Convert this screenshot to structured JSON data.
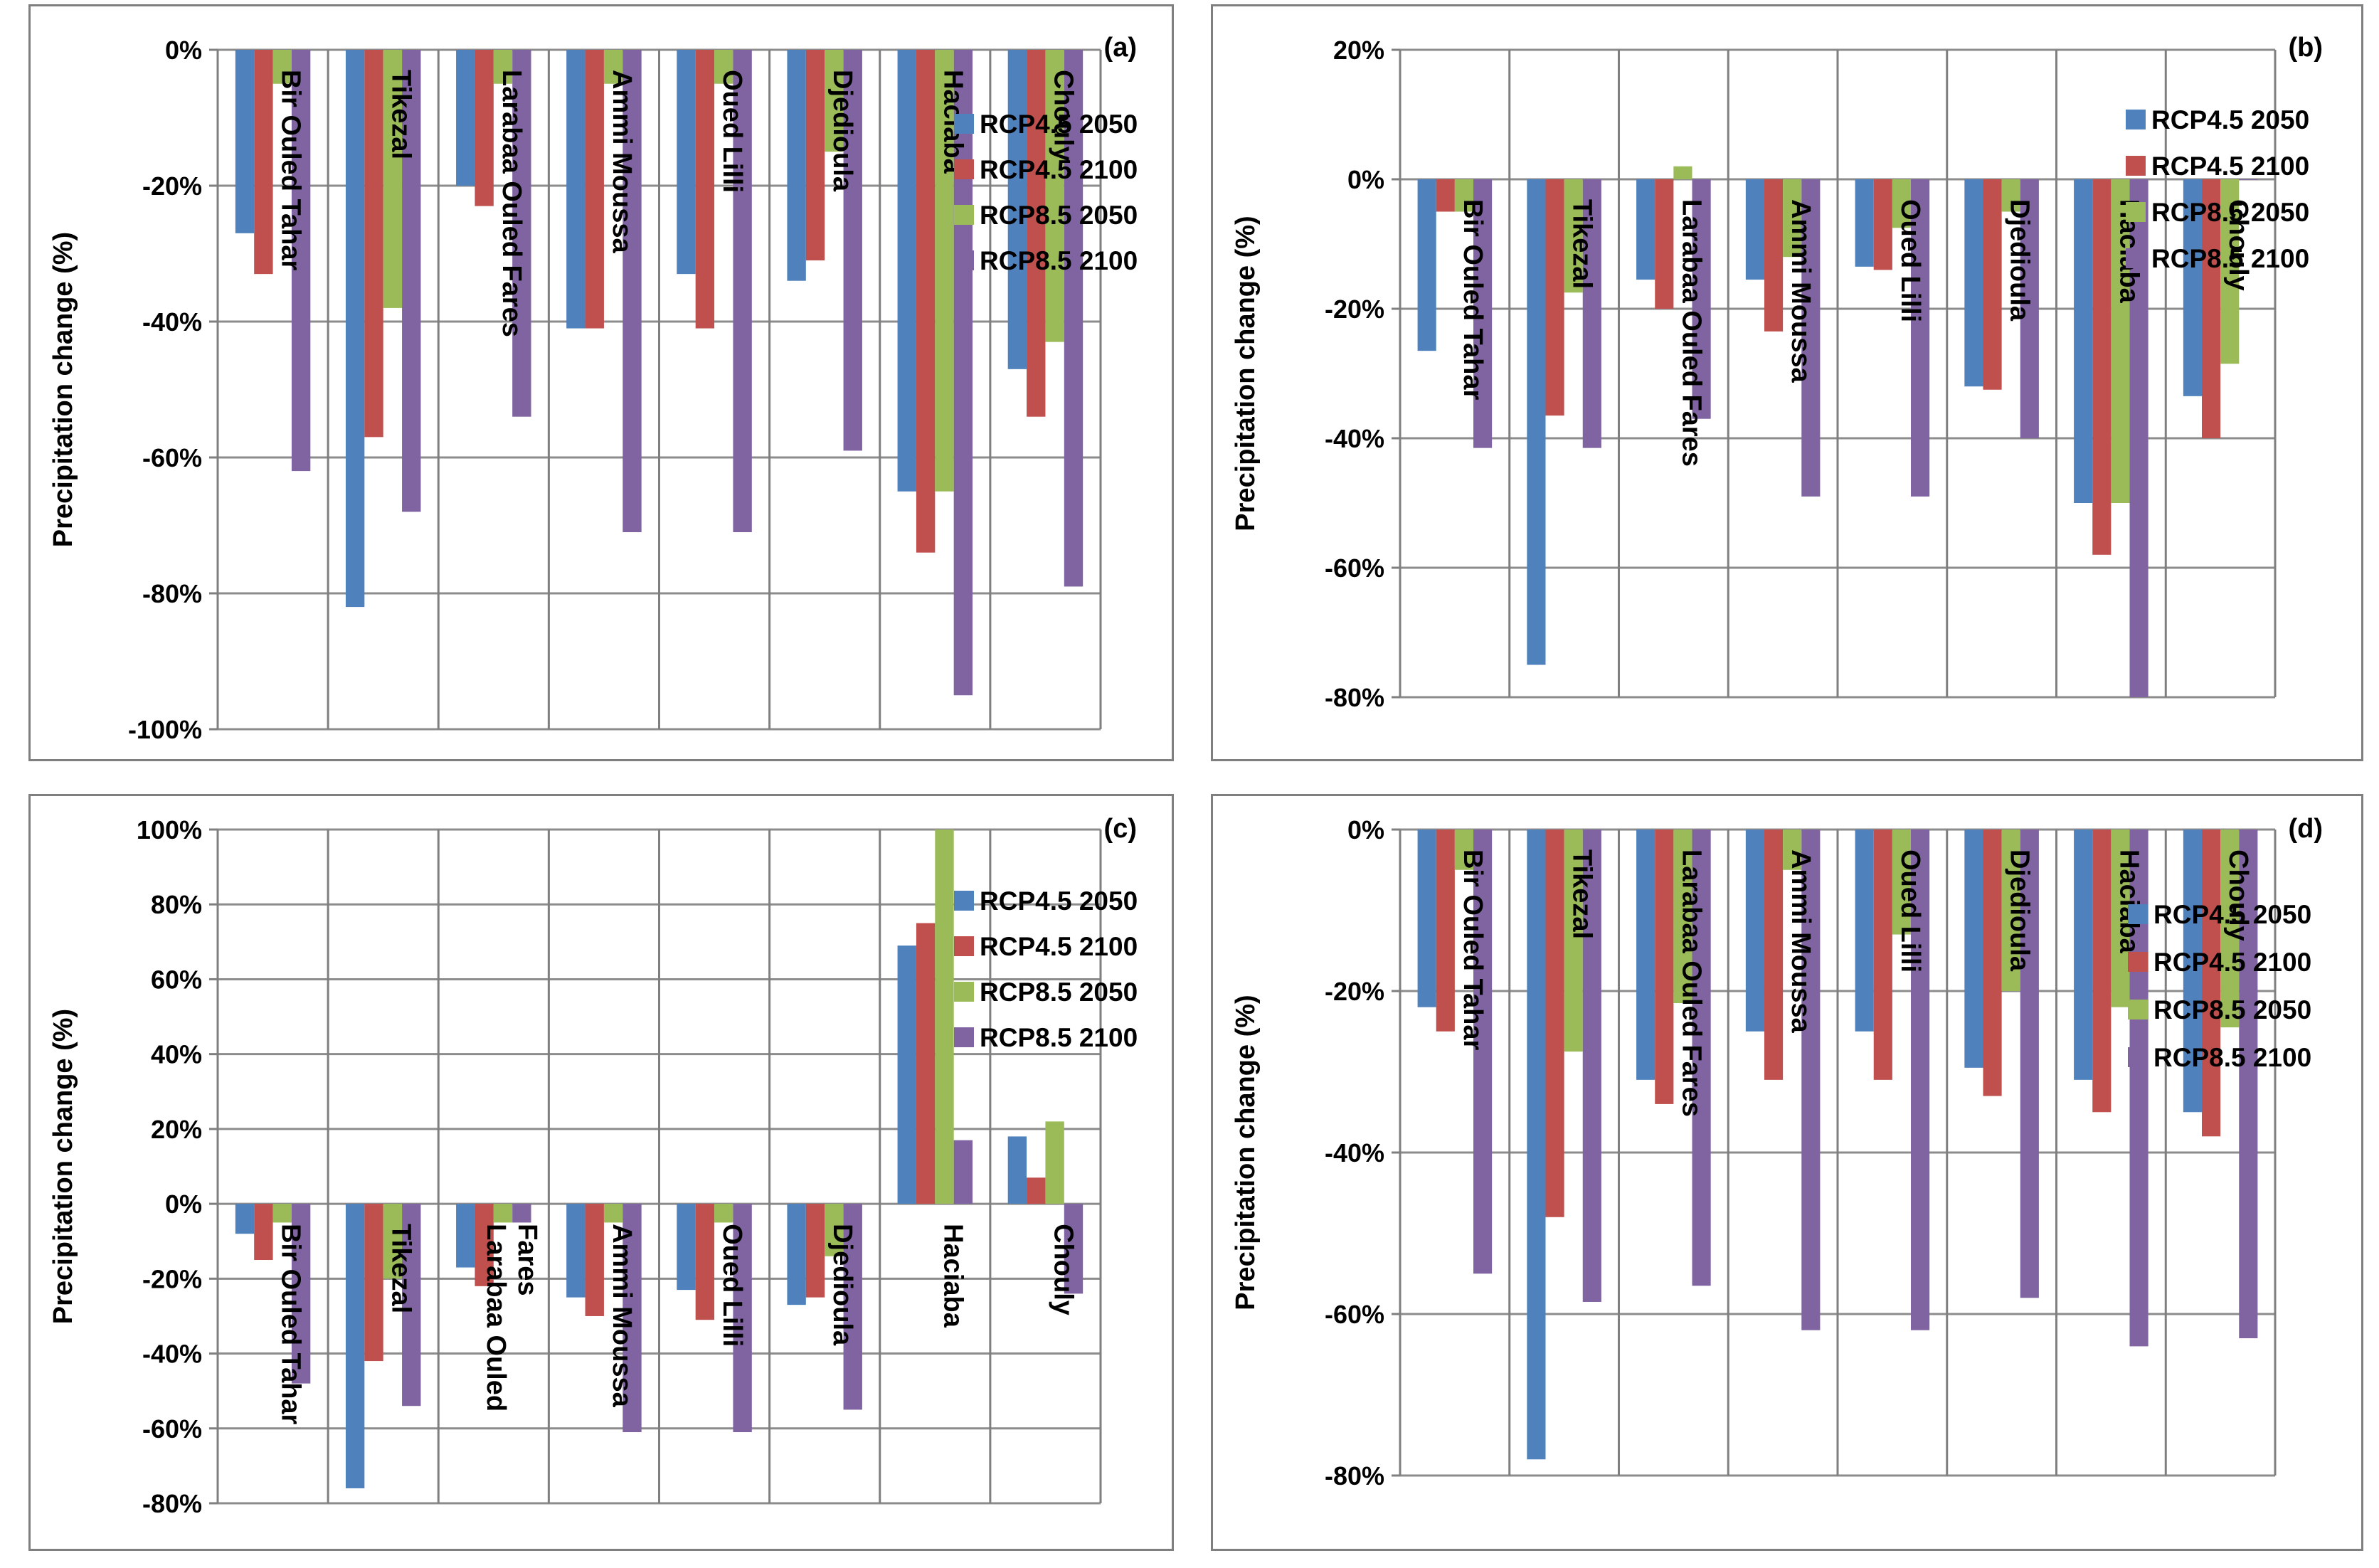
{
  "colors": {
    "RCP4.5 2050": "#4f81bd",
    "RCP4.5 2100": "#c0504d",
    "RCP8.5 2050": "#9bbb59",
    "RCP8.5 2100": "#8064a2",
    "grid": "#8c8c8c",
    "axis": "#7f7f7f",
    "text": "#000000"
  },
  "chart_data": [
    {
      "type": "bar",
      "panel_label": "(a)",
      "ylabel": "Precipitation change (%)",
      "ylim": [
        -100,
        0
      ],
      "yticks": [
        0,
        -20,
        -40,
        -60,
        -80,
        -100
      ],
      "ytick_labels": [
        "0%",
        "-20%",
        "-40%",
        "-60%",
        "-80%",
        "-100%"
      ],
      "categories": [
        "Bir Ouled Tahar",
        "Tikezal",
        "Larabaa Ouled Fares",
        "Ammi Moussa",
        "Oued Lilli",
        "Djedioula",
        "Haciaba",
        "Chouly"
      ],
      "category_labels": [
        [
          "Bir Ouled Tahar"
        ],
        [
          "Tikezal"
        ],
        [
          "Larabaa Ouled Fares"
        ],
        [
          "Ammi Moussa"
        ],
        [
          "Oued Lilli"
        ],
        [
          "Djedioula"
        ],
        [
          "Haciaba"
        ],
        [
          "Chouly"
        ]
      ],
      "series": [
        {
          "name": "RCP4.5 2050",
          "values": [
            -27,
            -82,
            -20,
            -41,
            -33,
            -34,
            -65,
            -47
          ]
        },
        {
          "name": "RCP4.5 2100",
          "values": [
            -33,
            -57,
            -23,
            -41,
            -41,
            -31,
            -74,
            -54
          ]
        },
        {
          "name": "RCP8.5 2050",
          "values": [
            -5,
            -38,
            -5,
            -5,
            -5,
            -15,
            -65,
            -43
          ]
        },
        {
          "name": "RCP8.5 2100",
          "values": [
            -62,
            -68,
            -54,
            -71,
            -71,
            -59,
            -95,
            -79
          ]
        }
      ]
    },
    {
      "type": "bar",
      "panel_label": "(b)",
      "ylabel": "Precipitation change (%)",
      "ylim": [
        -80,
        20
      ],
      "yticks": [
        20,
        0,
        -20,
        -40,
        -60,
        -80
      ],
      "ytick_labels": [
        "20%",
        "0%",
        "-20%",
        "-40%",
        "-60%",
        "-80%"
      ],
      "categories": [
        "Bir Ouled Tahar",
        "Tikezal",
        "Larabaa Ouled Fares",
        "Ammi Moussa",
        "Oued Lilli",
        "Djedioula",
        "Haciaba",
        "Chouly"
      ],
      "category_labels": [
        [
          "Bir Ouled Tahar"
        ],
        [
          "Tikezal"
        ],
        [
          "Larabaa Ouled Fares"
        ],
        [
          "Ammi Moussa"
        ],
        [
          "Oued Lilli"
        ],
        [
          "Djedioula"
        ],
        [
          "Haciaba"
        ],
        [
          "Chouly"
        ]
      ],
      "series": [
        {
          "name": "RCP4.5 2050",
          "values": [
            -26.5,
            -75,
            -15.5,
            -15.5,
            -13.5,
            -32,
            -50,
            -33.5
          ]
        },
        {
          "name": "RCP4.5 2100",
          "values": [
            -5,
            -36.5,
            -20,
            -23.5,
            -14,
            -32.5,
            -58,
            -40
          ]
        },
        {
          "name": "RCP8.5 2050",
          "values": [
            -5,
            -17.5,
            2,
            -12,
            -7.5,
            -5,
            -50,
            -28.5
          ]
        },
        {
          "name": "RCP8.5 2100",
          "values": [
            -41.5,
            -41.5,
            -37,
            -49,
            -49,
            -40,
            -80,
            0
          ]
        }
      ]
    },
    {
      "type": "bar",
      "panel_label": "(c)",
      "ylabel": "Precipitation change (%)",
      "ylim": [
        -80,
        100
      ],
      "yticks": [
        100,
        80,
        60,
        40,
        20,
        0,
        -20,
        -40,
        -60,
        -80
      ],
      "ytick_labels": [
        "100%",
        "80%",
        "60%",
        "40%",
        "20%",
        "0%",
        "-20%",
        "-40%",
        "-60%",
        "-80%"
      ],
      "categories": [
        "Bir Ouled Tahar",
        "Tikezal",
        "Larabaa Ouled Fares",
        "Ammi Moussa",
        "Oued Lilli",
        "Djedioula",
        "Haciaba",
        "Chouly"
      ],
      "category_labels": [
        [
          "Bir Ouled Tahar"
        ],
        [
          "Tikezal"
        ],
        [
          "Larabaa Ouled",
          "Fares"
        ],
        [
          "Ammi Moussa"
        ],
        [
          "Oued Lilli"
        ],
        [
          "Djedioula"
        ],
        [
          "Haciaba"
        ],
        [
          "Chouly"
        ]
      ],
      "series": [
        {
          "name": "RCP4.5 2050",
          "values": [
            -8,
            -76,
            -17,
            -25,
            -23,
            -27,
            69,
            18
          ]
        },
        {
          "name": "RCP4.5 2100",
          "values": [
            -15,
            -42,
            -22,
            -30,
            -31,
            -25,
            75,
            7
          ]
        },
        {
          "name": "RCP8.5 2050",
          "values": [
            -5,
            -20,
            -5,
            -5,
            -5,
            -14,
            100,
            22
          ]
        },
        {
          "name": "RCP8.5 2100",
          "values": [
            -48,
            -54,
            -5,
            -61,
            -61,
            -55,
            17,
            -24
          ]
        }
      ]
    },
    {
      "type": "bar",
      "panel_label": "(d)",
      "ylabel": "Precipitation change (%)",
      "ylim": [
        -80,
        0
      ],
      "yticks": [
        0,
        -20,
        -40,
        -60,
        -80
      ],
      "ytick_labels": [
        "0%",
        "-20%",
        "-40%",
        "-60%",
        "-80%"
      ],
      "categories": [
        "Bir Ouled Tahar",
        "Tikezal",
        "Larabaa Ouled Fares",
        "Ammi Moussa",
        "Oued Lilli",
        "Djedioula",
        "Haciaba",
        "Chouly"
      ],
      "category_labels": [
        [
          "Bir Ouled Tahar"
        ],
        [
          "Tikezal"
        ],
        [
          "Larabaa Ouled Fares"
        ],
        [
          "Ammi Moussa"
        ],
        [
          "Oued Lilli"
        ],
        [
          "Djedioula"
        ],
        [
          "Haciaba"
        ],
        [
          "Chouly"
        ]
      ],
      "series": [
        {
          "name": "RCP4.5 2050",
          "values": [
            -22,
            -78,
            -31,
            -25,
            -25,
            -29.5,
            -31,
            -35
          ]
        },
        {
          "name": "RCP4.5 2100",
          "values": [
            -25,
            -48,
            -34,
            -31,
            -31,
            -33,
            -35,
            -38
          ]
        },
        {
          "name": "RCP8.5 2050",
          "values": [
            -5,
            -27.5,
            -21.5,
            -5,
            -13,
            -20,
            -22,
            -24.5
          ]
        },
        {
          "name": "RCP8.5 2100",
          "values": [
            -55,
            -58.5,
            -56.5,
            -62,
            -62,
            -58,
            -64,
            -63
          ]
        }
      ]
    }
  ]
}
